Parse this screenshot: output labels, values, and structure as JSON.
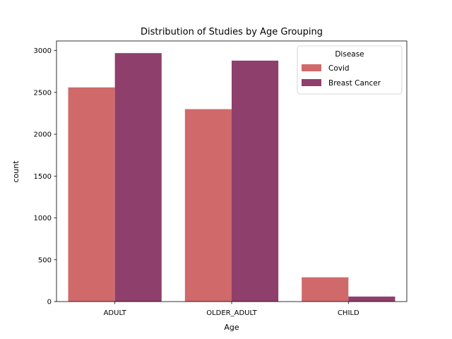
{
  "chart_data": {
    "type": "bar",
    "title": "Distribution of Studies by Age Grouping",
    "xlabel": "Age",
    "ylabel": "count",
    "categories": [
      "ADULT",
      "OLDER_ADULT",
      "CHILD"
    ],
    "series": [
      {
        "name": "Covid",
        "color": "#d0696a",
        "values": [
          2560,
          2300,
          290
        ]
      },
      {
        "name": "Breast Cancer",
        "color": "#8f3f6c",
        "values": [
          2970,
          2880,
          60
        ]
      }
    ],
    "ylim": [
      0,
      3000
    ],
    "yticks": [
      0,
      500,
      1000,
      1500,
      2000,
      2500,
      3000
    ],
    "legend": {
      "title": "Disease",
      "placement": "top-right"
    },
    "grid": false
  }
}
